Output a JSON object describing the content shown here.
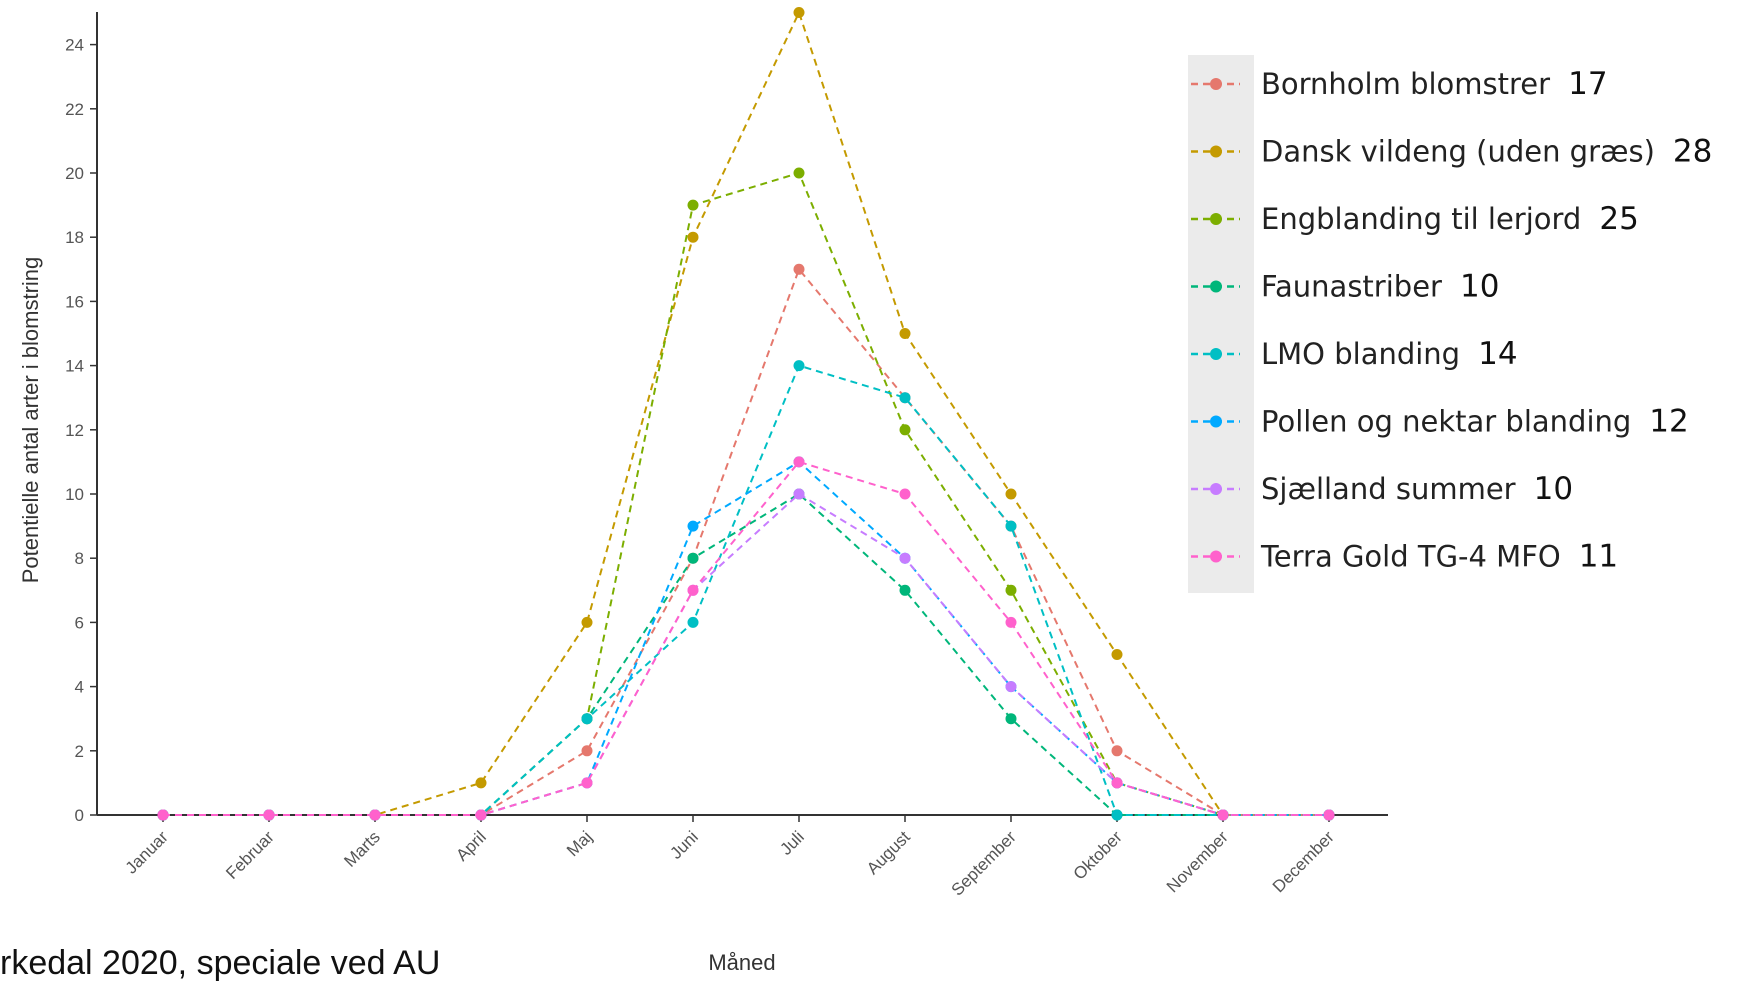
{
  "caption": "rkedal 2020, speciale ved AU",
  "chart_data": {
    "type": "line",
    "xlabel": "Måned",
    "ylabel": "Potentielle antal arter i blomstring",
    "ylim": [
      0,
      25
    ],
    "yticks": [
      0,
      2,
      4,
      6,
      8,
      10,
      12,
      14,
      16,
      18,
      20,
      22,
      24
    ],
    "categories": [
      "Januar",
      "Februar",
      "Marts",
      "April",
      "Maj",
      "Juni",
      "Juli",
      "August",
      "September",
      "Oktober",
      "November",
      "December"
    ],
    "legend_position": "right",
    "series": [
      {
        "name": "Bornholm blomstrer",
        "count": "17",
        "color": "#e5786d",
        "values": [
          0,
          0,
          0,
          0,
          2,
          8,
          17,
          13,
          9,
          2,
          0,
          0
        ]
      },
      {
        "name": "Dansk vildeng (uden græs)",
        "count": "28",
        "color": "#c49a00",
        "values": [
          0,
          0,
          0,
          1,
          6,
          18,
          25,
          15,
          10,
          5,
          0,
          0
        ]
      },
      {
        "name": "Engblanding til lerjord",
        "count": "25",
        "color": "#7cae00",
        "values": [
          0,
          0,
          0,
          0,
          3,
          19,
          20,
          12,
          7,
          1,
          0,
          0
        ]
      },
      {
        "name": "Faunastriber",
        "count": "10",
        "color": "#00b67a",
        "values": [
          0,
          0,
          0,
          0,
          3,
          8,
          10,
          7,
          3,
          0,
          0,
          0
        ]
      },
      {
        "name": "LMO blanding",
        "count": "14",
        "color": "#00bfc4",
        "values": [
          0,
          0,
          0,
          0,
          3,
          6,
          14,
          13,
          9,
          0,
          0,
          0
        ]
      },
      {
        "name": "Pollen og nektar blanding",
        "count": "12",
        "color": "#00a9ff",
        "values": [
          0,
          0,
          0,
          0,
          1,
          9,
          11,
          8,
          4,
          1,
          0,
          0
        ]
      },
      {
        "name": "Sjælland summer",
        "count": "10",
        "color": "#c77cff",
        "values": [
          0,
          0,
          0,
          0,
          1,
          7,
          10,
          8,
          4,
          1,
          0,
          0
        ]
      },
      {
        "name": "Terra Gold TG-4 MFO",
        "count": "11",
        "color": "#ff61cc",
        "values": [
          0,
          0,
          0,
          0,
          1,
          7,
          11,
          10,
          6,
          1,
          0,
          0
        ]
      }
    ]
  }
}
